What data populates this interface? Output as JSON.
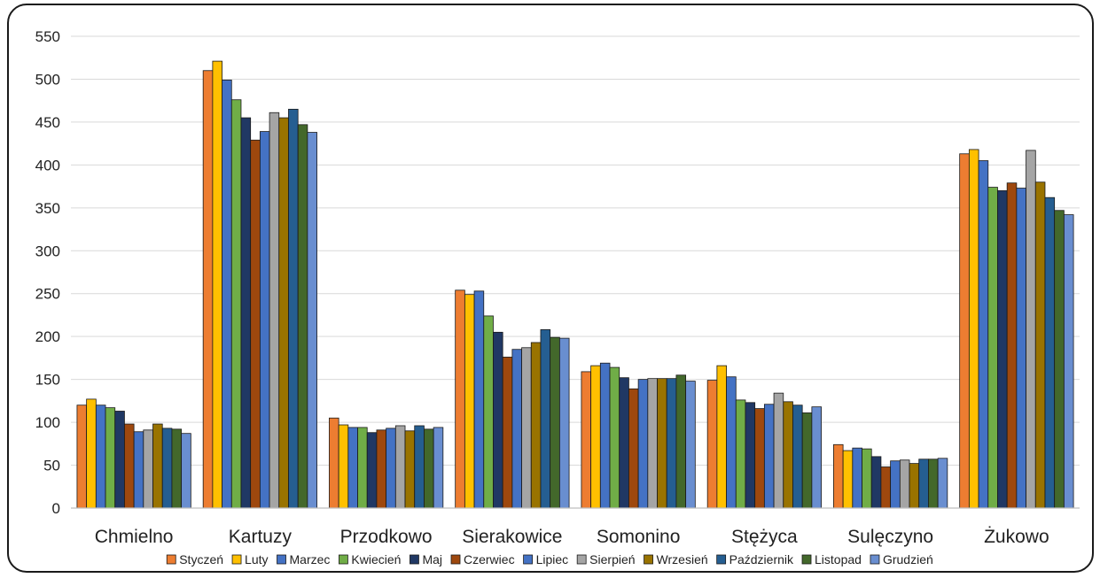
{
  "chart_data": {
    "type": "bar",
    "title": "",
    "xlabel": "",
    "ylabel": "",
    "ylim": [
      0,
      550
    ],
    "yticks": [
      0,
      50,
      100,
      150,
      200,
      250,
      300,
      350,
      400,
      450,
      500,
      550
    ],
    "grid": true,
    "legend_position": "bottom",
    "categories": [
      "Chmielno",
      "Kartuzy",
      "Przodkowo",
      "Sierakowice",
      "Somonino",
      "Stężyca",
      "Sulęczyno",
      "Żukowo"
    ],
    "series": [
      {
        "name": "Styczeń",
        "color": "#ED7D31",
        "values": [
          120,
          510,
          105,
          254,
          159,
          149,
          74,
          413
        ]
      },
      {
        "name": "Luty",
        "color": "#FFC000",
        "values": [
          127,
          521,
          97,
          249,
          166,
          166,
          67,
          418
        ]
      },
      {
        "name": "Marzec",
        "color": "#4472C4",
        "values": [
          120,
          499,
          94,
          253,
          169,
          153,
          70,
          405
        ]
      },
      {
        "name": "Kwiecień",
        "color": "#70AD47",
        "values": [
          117,
          476,
          94,
          224,
          164,
          126,
          69,
          374
        ]
      },
      {
        "name": "Maj",
        "color": "#203864",
        "values": [
          113,
          455,
          88,
          205,
          152,
          123,
          60,
          370
        ]
      },
      {
        "name": "Czerwiec",
        "color": "#9E480E",
        "values": [
          98,
          429,
          91,
          176,
          139,
          116,
          48,
          379
        ]
      },
      {
        "name": "Lipiec",
        "color": "#4472C4",
        "values": [
          89,
          439,
          93,
          185,
          150,
          121,
          55,
          373
        ]
      },
      {
        "name": "Sierpień",
        "color": "#A5A5A5",
        "values": [
          91,
          461,
          96,
          187,
          151,
          134,
          56,
          417
        ]
      },
      {
        "name": "Wrzesień",
        "color": "#997300",
        "values": [
          98,
          455,
          90,
          193,
          151,
          124,
          52,
          380
        ]
      },
      {
        "name": "Październik",
        "color": "#255E91",
        "values": [
          93,
          465,
          96,
          208,
          151,
          120,
          57,
          362
        ]
      },
      {
        "name": "Listopad",
        "color": "#43682B",
        "values": [
          92,
          447,
          92,
          199,
          155,
          111,
          57,
          347
        ]
      },
      {
        "name": "Grudzień",
        "color": "#698ED0",
        "values": [
          87,
          438,
          94,
          198,
          148,
          118,
          58,
          342
        ]
      }
    ]
  }
}
